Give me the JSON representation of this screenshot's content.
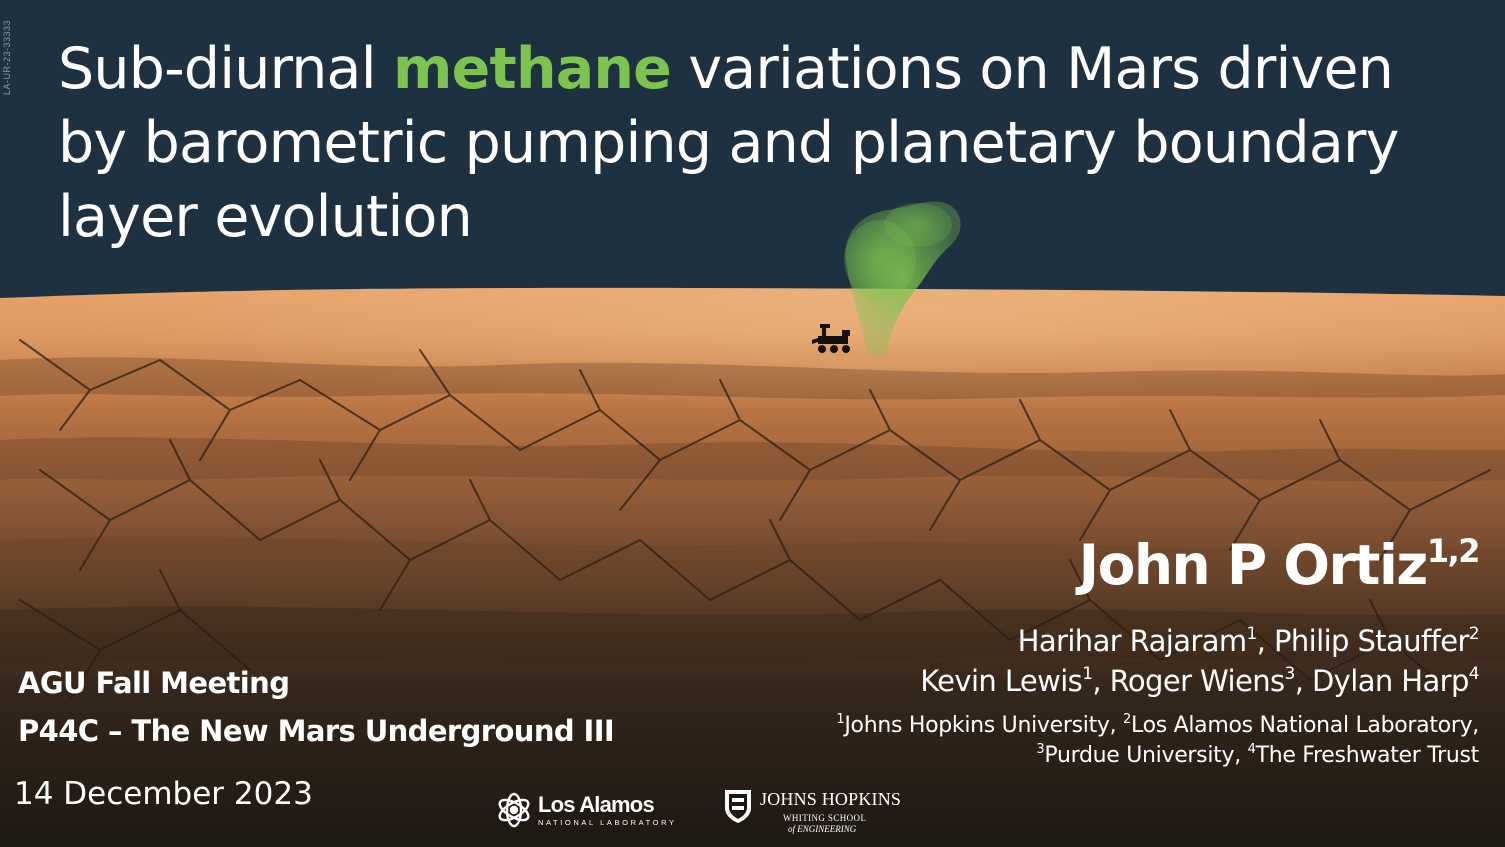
{
  "slide": {
    "doc_id": "LA-UR-23-33333",
    "title": {
      "before": "Sub-diurnal ",
      "highlight": "methane",
      "after": " variations on Mars driven by barometric pumping and planetary boundary layer evolution",
      "highlight_color": "#7cc44f"
    },
    "presenter": {
      "name": "John P Ortiz",
      "affil": "1,2"
    },
    "coauthors_line1": [
      {
        "name": "Harihar Rajaram",
        "affil": "1",
        "sep": ", "
      },
      {
        "name": "Philip Stauffer",
        "affil": "2",
        "sep": ""
      }
    ],
    "coauthors_line2": [
      {
        "name": "Kevin Lewis",
        "affil": "1",
        "sep": ", "
      },
      {
        "name": "Roger Wiens",
        "affil": "3",
        "sep": ", "
      },
      {
        "name": "Dylan Harp",
        "affil": "4",
        "sep": ""
      }
    ],
    "affiliations_line1": [
      {
        "num": "1",
        "name": "Johns Hopkins University, "
      },
      {
        "num": "2",
        "name": "Los Alamos National Laboratory,"
      }
    ],
    "affiliations_line2": [
      {
        "num": "3",
        "name": "Purdue University, "
      },
      {
        "num": "4",
        "name": "The Freshwater Trust"
      }
    ],
    "meeting": "AGU Fall Meeting",
    "session": "P44C – The New Mars Underground III",
    "date": "14 December 2023",
    "logos": {
      "lanl_name": "Los Alamos",
      "lanl_sub": "NATIONAL LABORATORY",
      "jhu_name": "JOHNS HOPKINS",
      "jhu_sub1": "WHITING SCHOOL",
      "jhu_sub2": "of ENGINEERING"
    },
    "colors": {
      "sky": "#1d3140",
      "terrain_light": "#d9925a",
      "terrain_dark": "#1d1812",
      "plume": "#7cc44f"
    },
    "icons": [
      "rover-icon",
      "methane-plume",
      "lanl-atom-icon",
      "jhu-shield-icon"
    ]
  }
}
